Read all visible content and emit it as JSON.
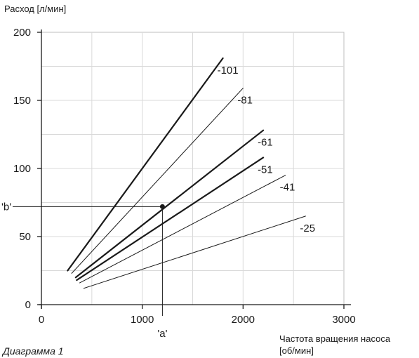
{
  "chart_data": {
    "type": "line",
    "ylabel": "Расход [л/мин]",
    "xlabel_line1": "Частота вращения насоса",
    "xlabel_line2": "[об/мин]",
    "caption": "Диаграмма 1",
    "xlim": [
      0,
      3000
    ],
    "ylim": [
      0,
      200
    ],
    "x_ticks": [
      0,
      1000,
      2000,
      3000
    ],
    "y_ticks": [
      0,
      50,
      100,
      150,
      200
    ],
    "x_tick_labels": [
      "0",
      "1000",
      "2000",
      "3000"
    ],
    "y_tick_labels": [
      "0",
      "50",
      "100",
      "150",
      "200"
    ],
    "grid": true,
    "grid_color": "#d9d9d9",
    "line_color": "#1a1a1a",
    "series": [
      {
        "name": "-101",
        "x": [
          260,
          1800
        ],
        "y": [
          25,
          181
        ],
        "bold": true
      },
      {
        "name": "-81",
        "x": [
          300,
          2000
        ],
        "y": [
          23,
          159
        ],
        "bold": false
      },
      {
        "name": "-61",
        "x": [
          340,
          2200
        ],
        "y": [
          20,
          128
        ],
        "bold": true
      },
      {
        "name": "-51",
        "x": [
          350,
          2200
        ],
        "y": [
          18,
          108
        ],
        "bold": true
      },
      {
        "name": "-41",
        "x": [
          380,
          2420
        ],
        "y": [
          16,
          95
        ],
        "bold": false
      },
      {
        "name": "-25",
        "x": [
          420,
          2620
        ],
        "y": [
          12,
          65
        ],
        "bold": false
      }
    ],
    "marker": {
      "x": 1200,
      "y": 72,
      "x_label": "'a'",
      "y_label": "'b'"
    }
  }
}
